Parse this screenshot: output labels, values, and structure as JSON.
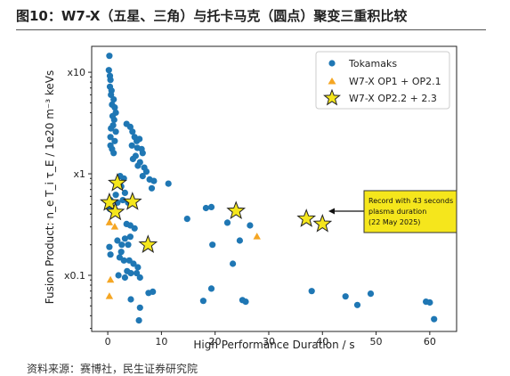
{
  "header": {
    "title": "图10：W7-X（五星、三角）与托卡马克（圆点）聚变三重积比较"
  },
  "footer": {
    "source": "资料来源：赛博社，民生证券研究院"
  },
  "colors": {
    "tokamak": "#1f77b4",
    "op1": "#f5a623",
    "op22": "#f5e61c",
    "star_edge": "#222222",
    "annotation_box": "#f5e61c"
  },
  "chart_data": {
    "type": "scatter",
    "xlabel": "High Performance Duration / s",
    "ylabel": "Fusion Product:  n_e T_i τ_E  /  1e20 m⁻³ keVs",
    "xlim": [
      -3,
      65
    ],
    "ylim": [
      0.028,
      18
    ],
    "yscale": "log",
    "xticks": [
      0,
      10,
      20,
      30,
      40,
      50,
      60
    ],
    "yticks": [
      {
        "value": 0.1,
        "label": "x0.1"
      },
      {
        "value": 1,
        "label": "x1"
      },
      {
        "value": 10,
        "label": "x10"
      }
    ],
    "grid": false,
    "legend_position": "top-right",
    "series": [
      {
        "name": "Tokamaks",
        "marker": "circle",
        "points": [
          [
            0.3,
            14.5
          ],
          [
            0.2,
            10.5
          ],
          [
            0.4,
            9.2
          ],
          [
            0.5,
            8.4
          ],
          [
            0.4,
            7.2
          ],
          [
            0.7,
            6.6
          ],
          [
            0.6,
            6.0
          ],
          [
            1.1,
            5.4
          ],
          [
            0.8,
            4.8
          ],
          [
            1.3,
            4.5
          ],
          [
            1.5,
            4.0
          ],
          [
            0.9,
            3.7
          ],
          [
            1.2,
            3.4
          ],
          [
            1.0,
            3.0
          ],
          [
            0.6,
            2.8
          ],
          [
            1.5,
            2.6
          ],
          [
            0.5,
            2.3
          ],
          [
            1.3,
            2.1
          ],
          [
            0.5,
            1.9
          ],
          [
            0.8,
            1.75
          ],
          [
            1.1,
            1.6
          ],
          [
            3.5,
            3.1
          ],
          [
            4.2,
            2.9
          ],
          [
            4.6,
            2.6
          ],
          [
            5.0,
            2.3
          ],
          [
            5.4,
            2.1
          ],
          [
            5.9,
            2.2
          ],
          [
            4.5,
            1.9
          ],
          [
            5.5,
            1.8
          ],
          [
            6.3,
            1.75
          ],
          [
            6.5,
            1.6
          ],
          [
            5.2,
            1.5
          ],
          [
            4.7,
            1.4
          ],
          [
            6.0,
            1.3
          ],
          [
            5.6,
            1.2
          ],
          [
            6.8,
            1.15
          ],
          [
            7.2,
            1.05
          ],
          [
            6.5,
            0.95
          ],
          [
            7.8,
            0.88
          ],
          [
            8.6,
            0.85
          ],
          [
            11.3,
            0.8
          ],
          [
            8.2,
            0.72
          ],
          [
            2.3,
            0.95
          ],
          [
            3.0,
            0.9
          ],
          [
            2.0,
            0.8
          ],
          [
            2.5,
            0.75
          ],
          [
            3.2,
            0.65
          ],
          [
            1.5,
            0.62
          ],
          [
            1.8,
            0.52
          ],
          [
            2.8,
            0.55
          ],
          [
            3.8,
            0.52
          ],
          [
            0.5,
            0.55
          ],
          [
            0.4,
            0.45
          ],
          [
            3.5,
            0.32
          ],
          [
            4.2,
            0.31
          ],
          [
            5.0,
            0.29
          ],
          [
            4.2,
            0.24
          ],
          [
            3.2,
            0.23
          ],
          [
            1.8,
            0.22
          ],
          [
            2.6,
            0.2
          ],
          [
            3.8,
            0.2
          ],
          [
            2.5,
            0.17
          ],
          [
            2.2,
            0.15
          ],
          [
            3.0,
            0.14
          ],
          [
            4.0,
            0.14
          ],
          [
            4.8,
            0.13
          ],
          [
            5.6,
            0.12
          ],
          [
            3.6,
            0.11
          ],
          [
            4.3,
            0.105
          ],
          [
            5.4,
            0.105
          ],
          [
            6.0,
            0.095
          ],
          [
            3.2,
            0.095
          ],
          [
            0.3,
            0.19
          ],
          [
            0.5,
            0.16
          ],
          [
            2.0,
            0.1
          ],
          [
            4.3,
            0.058
          ],
          [
            6.0,
            0.048
          ],
          [
            7.6,
            0.067
          ],
          [
            8.4,
            0.069
          ],
          [
            5.8,
            0.036
          ],
          [
            14.8,
            0.36
          ],
          [
            18.3,
            0.46
          ],
          [
            19.3,
            0.47
          ],
          [
            22.3,
            0.33
          ],
          [
            26.5,
            0.31
          ],
          [
            19.5,
            0.2
          ],
          [
            24.6,
            0.22
          ],
          [
            23.3,
            0.13
          ],
          [
            19.3,
            0.074
          ],
          [
            17.8,
            0.056
          ],
          [
            25.1,
            0.057
          ],
          [
            25.7,
            0.055
          ],
          [
            38.0,
            0.07
          ],
          [
            44.3,
            0.062
          ],
          [
            46.5,
            0.051
          ],
          [
            49.0,
            0.066
          ],
          [
            59.3,
            0.055
          ],
          [
            60.0,
            0.054
          ],
          [
            60.8,
            0.037
          ]
        ]
      },
      {
        "name": "W7-X OP1 + OP2.1",
        "marker": "triangle",
        "points": [
          [
            0.3,
            0.33
          ],
          [
            1.3,
            0.3
          ],
          [
            0.5,
            0.09
          ],
          [
            0.3,
            0.062
          ],
          [
            27.8,
            0.24
          ]
        ]
      },
      {
        "name": "W7-X OP2.2 + 2.3",
        "marker": "star",
        "points": [
          [
            1.8,
            0.81
          ],
          [
            0.3,
            0.52
          ],
          [
            1.4,
            0.42
          ],
          [
            4.6,
            0.53
          ],
          [
            7.5,
            0.2
          ],
          [
            23.9,
            0.43
          ],
          [
            37.0,
            0.36
          ],
          [
            40.0,
            0.32
          ]
        ]
      }
    ],
    "annotation": {
      "text": [
        "Record with 43 seconds",
        "plasma duration",
        "(22 May 2025)"
      ],
      "target": [
        40.0,
        0.32
      ]
    }
  }
}
